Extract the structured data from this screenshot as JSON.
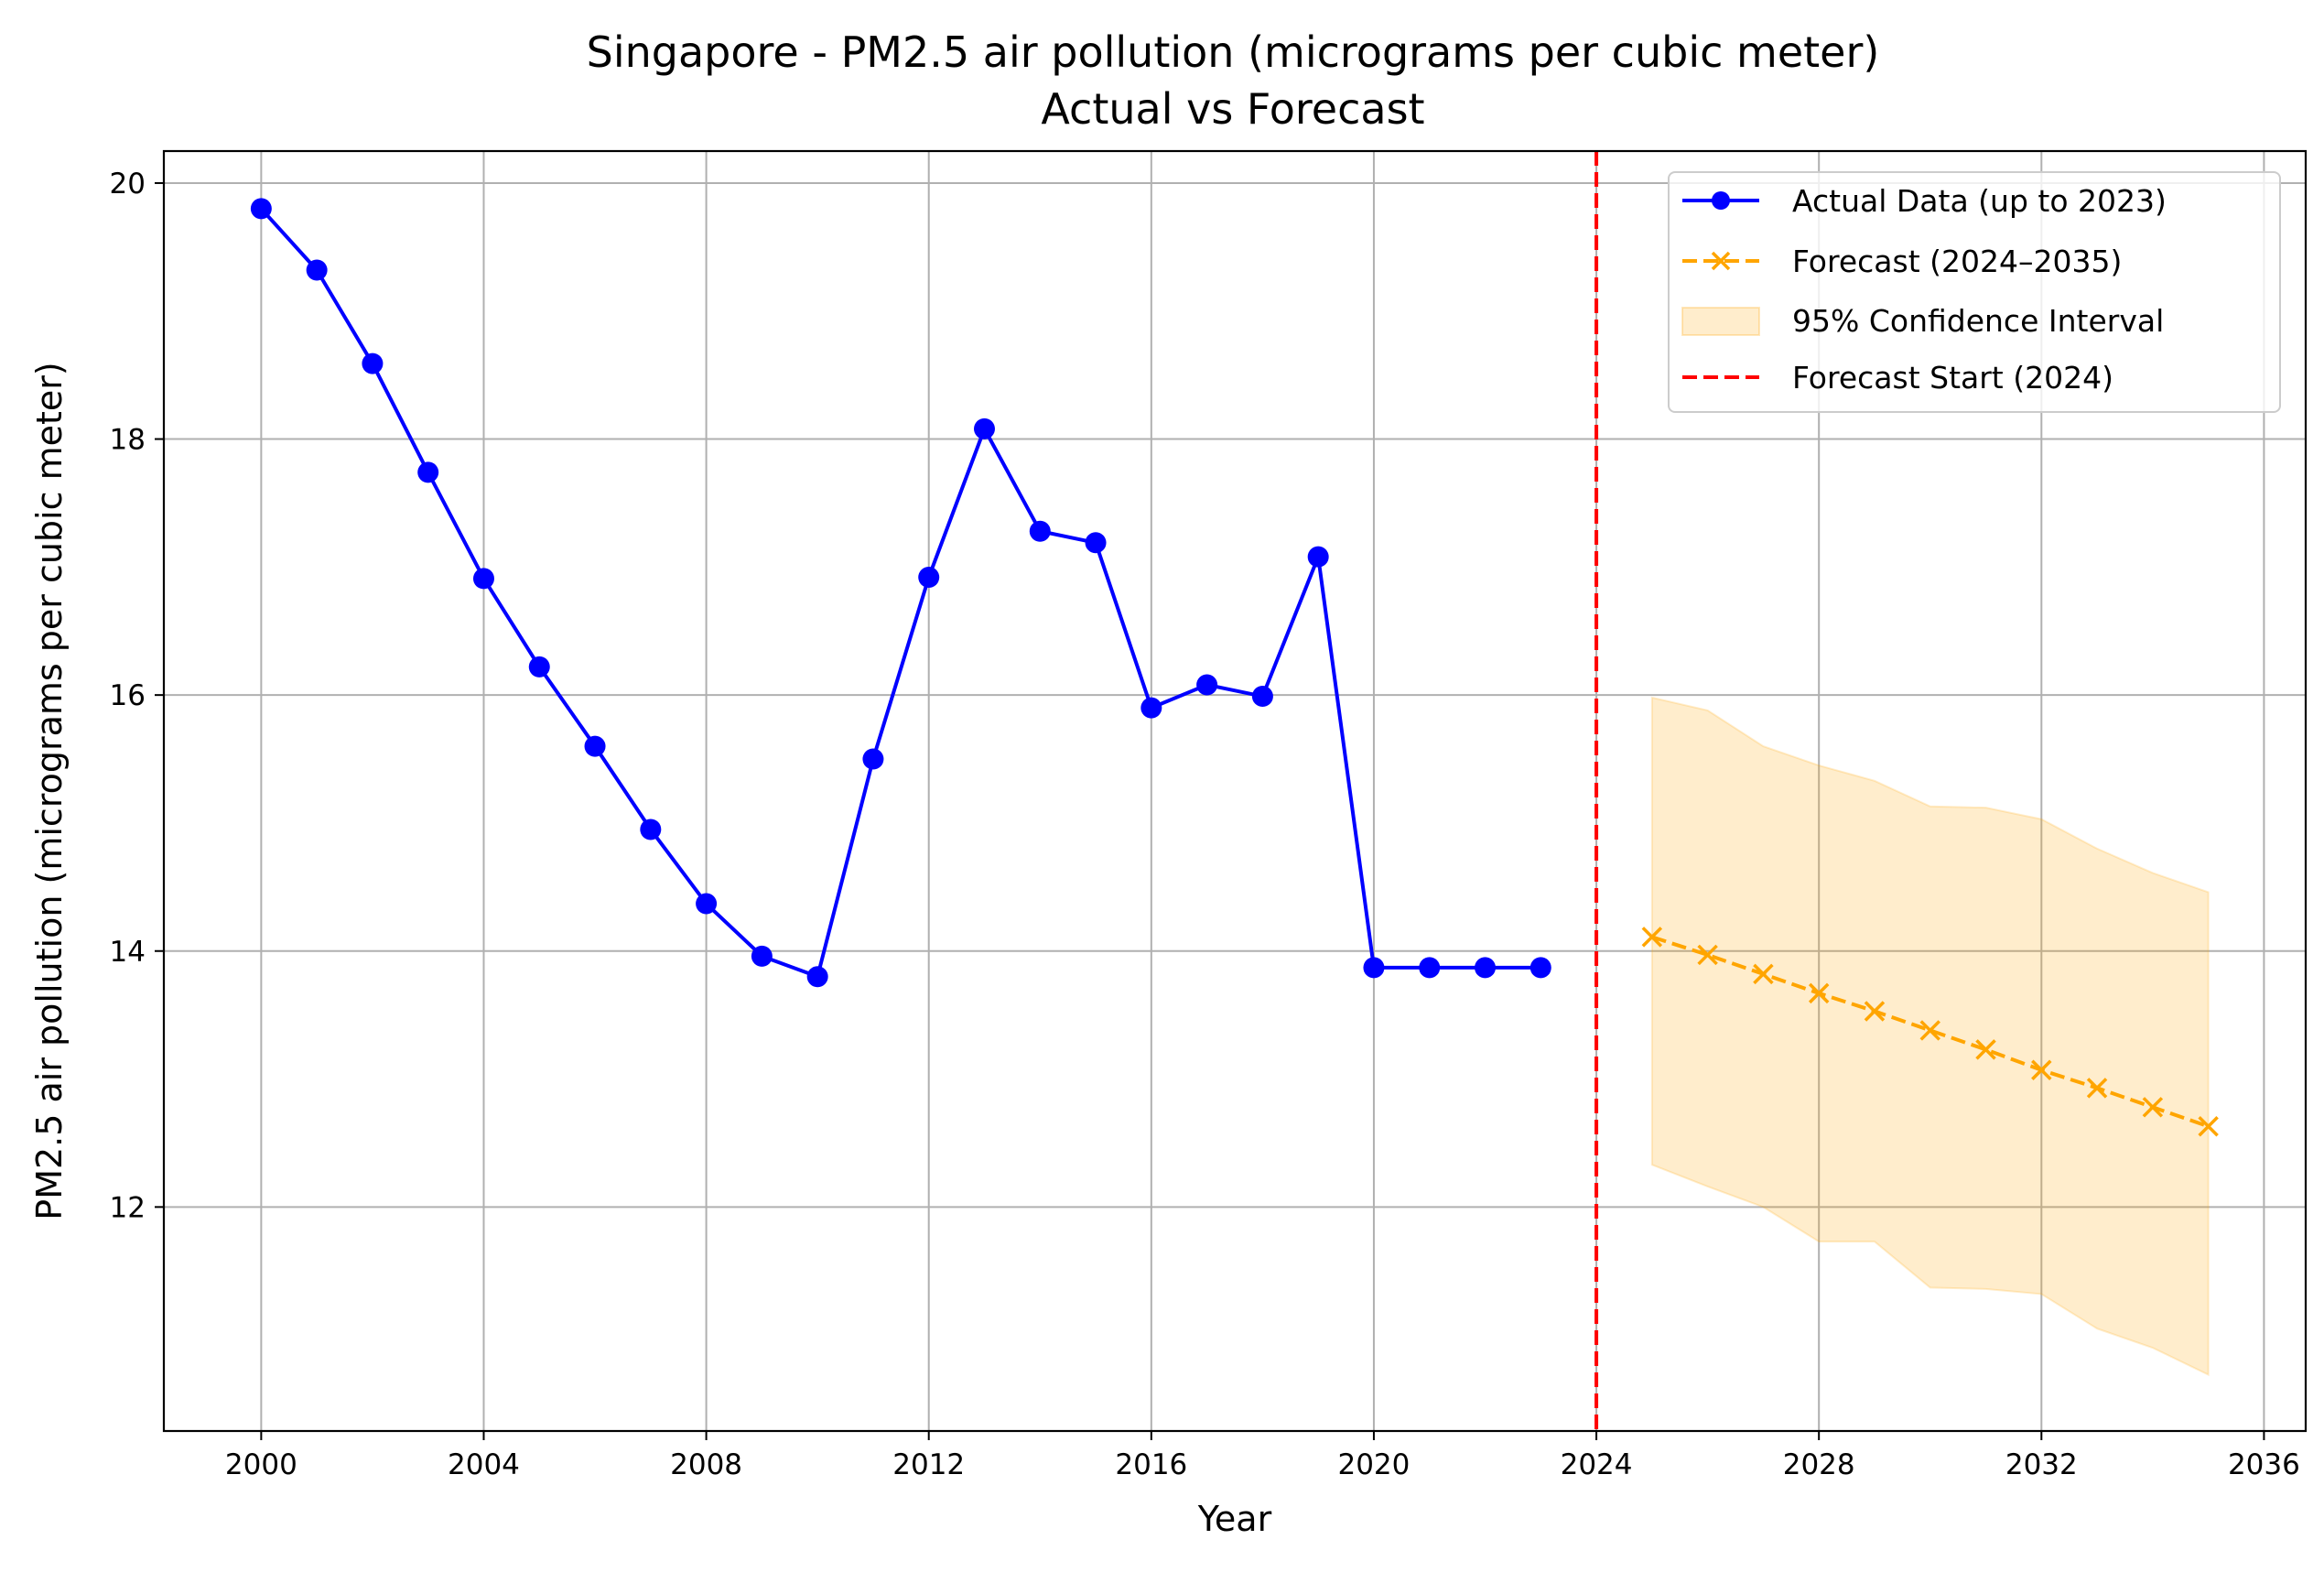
{
  "chart_data": {
    "type": "line",
    "title": "Singapore - PM2.5 air pollution (micrograms per cubic meter)",
    "subtitle": "Actual vs Forecast",
    "xlabel": "Year",
    "ylabel": "PM2.5 air pollution (micrograms per cubic meter)",
    "xlim": [
      1998.25,
      2036.75
    ],
    "ylim": [
      10.25,
      20.25
    ],
    "xticks": [
      2000,
      2004,
      2008,
      2012,
      2016,
      2020,
      2024,
      2028,
      2032,
      2036
    ],
    "yticks": [
      12,
      14,
      16,
      18,
      20
    ],
    "grid": true,
    "legend_position": "top-right",
    "colors": {
      "actual": "#0000ff",
      "forecast": "#ffa500",
      "ci_fill": "#ffa500",
      "forecast_start": "#ff0000",
      "grid": "#b0b0b0"
    },
    "series": [
      {
        "name": "Actual Data (up to 2023)",
        "style": "solid-circle",
        "x": [
          2000,
          2001,
          2002,
          2003,
          2004,
          2005,
          2006,
          2007,
          2008,
          2009,
          2010,
          2011,
          2012,
          2013,
          2014,
          2015,
          2016,
          2017,
          2018,
          2019,
          2020,
          2021,
          2022,
          2023
        ],
        "y": [
          19.8,
          19.32,
          18.59,
          17.74,
          16.91,
          16.22,
          15.6,
          14.95,
          14.37,
          13.96,
          13.8,
          15.5,
          16.92,
          18.08,
          17.28,
          17.19,
          15.9,
          16.08,
          15.99,
          17.08,
          13.87,
          13.87,
          13.87,
          13.87
        ]
      },
      {
        "name": "Forecast (2024–2035)",
        "style": "dashed-x",
        "x": [
          2025,
          2026,
          2027,
          2028,
          2029,
          2030,
          2031,
          2032,
          2033,
          2034,
          2035
        ],
        "y": [
          14.11,
          13.97,
          13.82,
          13.67,
          13.53,
          13.38,
          13.23,
          13.07,
          12.93,
          12.78,
          12.63
        ]
      }
    ],
    "confidence_interval": {
      "name": "95% Confidence Interval",
      "x": [
        2025,
        2026,
        2027,
        2028,
        2029,
        2030,
        2031,
        2032,
        2033,
        2034,
        2035
      ],
      "upper": [
        15.98,
        15.88,
        15.6,
        15.45,
        15.33,
        15.13,
        15.12,
        15.03,
        14.8,
        14.61,
        14.46
      ],
      "lower": [
        12.33,
        12.16,
        12.0,
        11.73,
        11.73,
        11.37,
        11.36,
        11.32,
        11.05,
        10.9,
        10.69
      ]
    },
    "vline": {
      "name": "Forecast Start (2024)",
      "x": 2024
    }
  }
}
